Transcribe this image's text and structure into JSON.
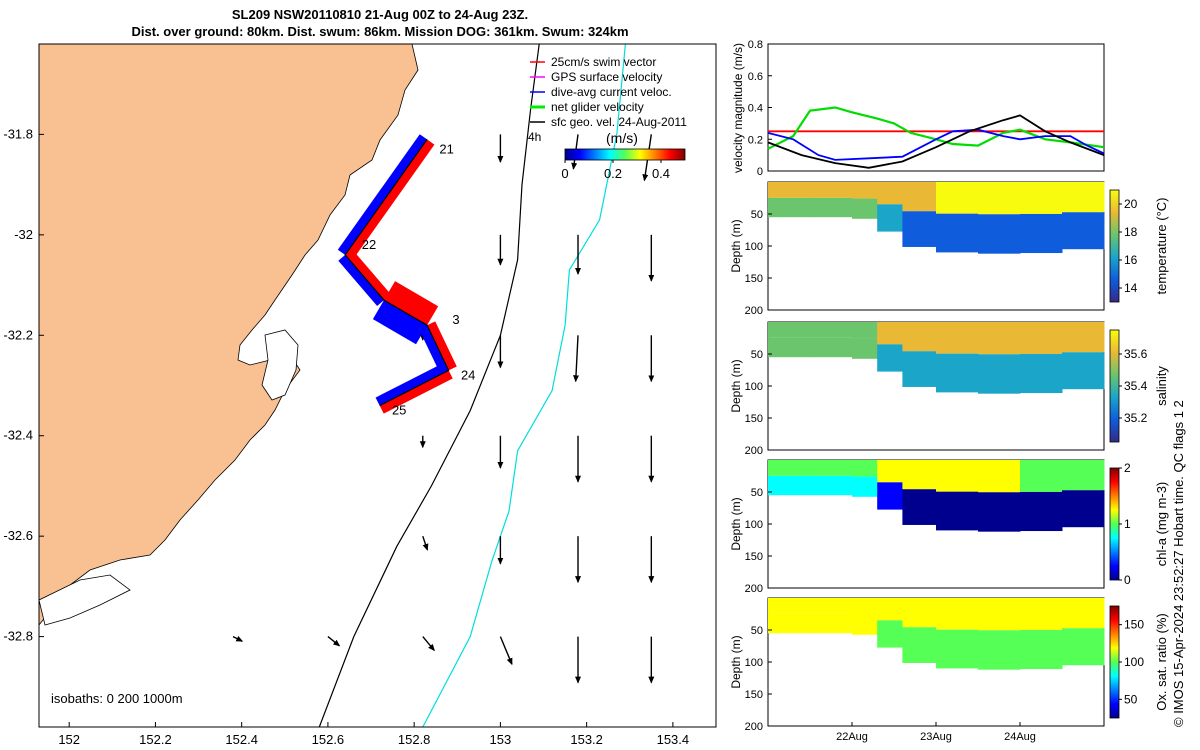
{
  "title": {
    "line1": "SL209 NSW20110810 21-Aug 00Z to 24-Aug 23Z.",
    "line2": "Dist. over ground: 80km. Dist. swum: 86km. Mission DOG: 361km. Swum: 324km"
  },
  "credit": "© IMOS 15-Apr-2024 23:52:27 Hobart time. QC flags 1  2",
  "colors": {
    "land": "#f9c091",
    "swim": "#ff0000",
    "gps": "#ff00ff",
    "current": "#0000ff",
    "net": "#00ee00",
    "geo": "#000000",
    "iso200": "#000000",
    "iso1000": "#00dddd"
  },
  "chart_data": [
    {
      "type": "line",
      "panel": "map",
      "xlim": [
        151.93,
        153.5
      ],
      "ylim": [
        -32.98,
        -31.62
      ],
      "x_ticks": [
        152,
        152.2,
        152.4,
        152.6,
        152.8,
        153,
        153.2,
        153.4
      ],
      "x_tick_labels": [
        "152",
        "152.2",
        "152.4",
        "152.6",
        "152.8",
        "153",
        "153.2",
        "153.4"
      ],
      "y_ticks": [
        -31.8,
        -32,
        -32.2,
        -32.4,
        -32.6,
        -32.8
      ],
      "y_tick_labels": [
        "-31.8",
        "-32",
        "-32.2",
        "-32.4",
        "-32.6",
        "-32.8"
      ],
      "legend": {
        "placement": "top-right",
        "items": [
          {
            "label": "25cm/s swim vector",
            "color": "#ff0000"
          },
          {
            "label": "GPS surface velocity",
            "color": "#ff00ff"
          },
          {
            "label": "dive-avg current veloc.",
            "color": "#0000ff"
          },
          {
            "label": "net glider velocity",
            "color": "#00ee00"
          },
          {
            "label": "sfc geo. vel. 24-Aug-2011",
            "color": "#000000"
          }
        ],
        "interval_label": "4h"
      },
      "colorbar": {
        "title": "(m/s)",
        "ticks": [
          "0",
          "0.2",
          "0.4"
        ],
        "range": [
          0,
          0.5
        ]
      },
      "isobath_label": "isobaths: 0   200  1000m",
      "glider_track": [
        {
          "lon": 152.83,
          "lat": -31.81
        },
        {
          "lon": 152.64,
          "lat": -32.04
        },
        {
          "lon": 152.73,
          "lat": -32.13
        },
        {
          "lon": 152.83,
          "lat": -32.18
        },
        {
          "lon": 152.88,
          "lat": -32.27
        },
        {
          "lon": 152.72,
          "lat": -32.34
        }
      ],
      "day_labels": [
        {
          "text": "21",
          "lon": 152.84,
          "lat": -31.83
        },
        {
          "text": "22",
          "lon": 152.66,
          "lat": -32.02
        },
        {
          "text": "3",
          "lon": 152.87,
          "lat": -32.17
        },
        {
          "text": "24",
          "lon": 152.89,
          "lat": -32.28
        },
        {
          "text": "25",
          "lon": 152.73,
          "lat": -32.35
        }
      ],
      "isobath_200": [
        {
          "lon": 152.58,
          "lat": -32.98
        },
        {
          "lon": 152.66,
          "lat": -32.8
        },
        {
          "lon": 152.76,
          "lat": -32.62
        },
        {
          "lon": 152.84,
          "lat": -32.5
        },
        {
          "lon": 152.93,
          "lat": -32.35
        },
        {
          "lon": 153.0,
          "lat": -32.2
        },
        {
          "lon": 153.04,
          "lat": -32.05
        },
        {
          "lon": 153.05,
          "lat": -31.9
        },
        {
          "lon": 153.07,
          "lat": -31.75
        },
        {
          "lon": 153.09,
          "lat": -31.62
        }
      ],
      "isobath_1000": [
        {
          "lon": 152.82,
          "lat": -32.98
        },
        {
          "lon": 152.93,
          "lat": -32.8
        },
        {
          "lon": 152.98,
          "lat": -32.65
        },
        {
          "lon": 153.02,
          "lat": -32.55
        },
        {
          "lon": 153.04,
          "lat": -32.43
        },
        {
          "lon": 153.12,
          "lat": -32.31
        },
        {
          "lon": 153.15,
          "lat": -32.18
        },
        {
          "lon": 153.16,
          "lat": -32.07
        },
        {
          "lon": 153.23,
          "lat": -31.97
        },
        {
          "lon": 153.27,
          "lat": -31.8
        },
        {
          "lon": 153.29,
          "lat": -31.62
        }
      ],
      "geo_vectors": [
        {
          "lon": 153.0,
          "lat": -31.8,
          "u": 0.0,
          "v": -0.12
        },
        {
          "lon": 153.18,
          "lat": -31.8,
          "u": -0.02,
          "v": -0.15
        },
        {
          "lon": 153.35,
          "lat": -31.8,
          "u": -0.03,
          "v": -0.2
        },
        {
          "lon": 153.0,
          "lat": -32.0,
          "u": 0.0,
          "v": -0.13
        },
        {
          "lon": 153.18,
          "lat": -32.0,
          "u": 0.0,
          "v": -0.17
        },
        {
          "lon": 153.35,
          "lat": -32.0,
          "u": 0.0,
          "v": -0.2
        },
        {
          "lon": 152.82,
          "lat": -32.2,
          "u": 0.0,
          "v": -0.02
        },
        {
          "lon": 153.0,
          "lat": -32.2,
          "u": 0.0,
          "v": -0.14
        },
        {
          "lon": 153.18,
          "lat": -32.2,
          "u": -0.01,
          "v": -0.2
        },
        {
          "lon": 153.35,
          "lat": -32.2,
          "u": 0.0,
          "v": -0.2
        },
        {
          "lon": 152.82,
          "lat": -32.4,
          "u": 0.0,
          "v": -0.05
        },
        {
          "lon": 153.0,
          "lat": -32.4,
          "u": 0.0,
          "v": -0.14
        },
        {
          "lon": 153.18,
          "lat": -32.4,
          "u": 0.0,
          "v": -0.2
        },
        {
          "lon": 153.35,
          "lat": -32.4,
          "u": 0.0,
          "v": -0.2
        },
        {
          "lon": 152.82,
          "lat": -32.6,
          "u": 0.02,
          "v": -0.06
        },
        {
          "lon": 153.0,
          "lat": -32.6,
          "u": 0.0,
          "v": -0.12
        },
        {
          "lon": 153.18,
          "lat": -32.6,
          "u": 0.0,
          "v": -0.2
        },
        {
          "lon": 153.35,
          "lat": -32.6,
          "u": 0.0,
          "v": -0.2
        },
        {
          "lon": 152.38,
          "lat": -32.8,
          "u": 0.04,
          "v": -0.02
        },
        {
          "lon": 152.6,
          "lat": -32.8,
          "u": 0.05,
          "v": -0.04
        },
        {
          "lon": 152.82,
          "lat": -32.8,
          "u": 0.05,
          "v": -0.06
        },
        {
          "lon": 153.0,
          "lat": -32.8,
          "u": 0.05,
          "v": -0.12
        },
        {
          "lon": 153.18,
          "lat": -32.8,
          "u": 0.0,
          "v": -0.2
        },
        {
          "lon": 153.35,
          "lat": -32.8,
          "u": 0.0,
          "v": -0.2
        }
      ]
    },
    {
      "type": "line",
      "panel": "velocity",
      "ylabel": "velocity magnitude (m/s)",
      "ylim": [
        0,
        0.8
      ],
      "y_ticks": [
        0,
        0.2,
        0.4,
        0.6,
        0.8
      ],
      "y_tick_labels": [
        "0",
        "0.2",
        "0.4",
        "0.6",
        "0.8"
      ],
      "x_range_days": [
        0,
        4
      ],
      "series": [
        {
          "color": "#ff0000",
          "x": [
            0,
            4
          ],
          "values": [
            0.25,
            0.25
          ]
        },
        {
          "color": "#00dd00",
          "x": [
            0,
            0.3,
            0.5,
            0.8,
            1.0,
            1.3,
            1.5,
            1.7,
            2.0,
            2.2,
            2.5,
            2.8,
            3.0,
            3.3,
            3.6,
            4.0
          ],
          "values": [
            0.14,
            0.22,
            0.38,
            0.4,
            0.37,
            0.33,
            0.3,
            0.24,
            0.2,
            0.17,
            0.16,
            0.24,
            0.26,
            0.2,
            0.18,
            0.15
          ]
        },
        {
          "color": "#0000ff",
          "x": [
            0,
            0.3,
            0.6,
            0.8,
            1.2,
            1.6,
            2.0,
            2.2,
            2.5,
            2.8,
            3.0,
            3.3,
            3.6,
            3.8,
            4.0
          ],
          "values": [
            0.24,
            0.2,
            0.1,
            0.07,
            0.08,
            0.09,
            0.2,
            0.25,
            0.26,
            0.22,
            0.2,
            0.22,
            0.22,
            0.16,
            0.11
          ]
        },
        {
          "color": "#000000",
          "x": [
            0,
            0.4,
            0.8,
            1.2,
            1.6,
            2.0,
            2.4,
            2.8,
            3.0,
            3.3,
            3.6,
            4.0
          ],
          "values": [
            0.18,
            0.1,
            0.05,
            0.02,
            0.06,
            0.15,
            0.25,
            0.32,
            0.35,
            0.25,
            0.18,
            0.1
          ]
        }
      ]
    },
    {
      "type": "heatmap",
      "panel": "temperature",
      "ylabel": "Depth (m)",
      "colorbar_label": "temperature (°C)",
      "ylim": [
        200,
        0
      ],
      "y_ticks": [
        50,
        100,
        150,
        200
      ],
      "y_tick_labels": [
        "50",
        "100",
        "150",
        "200"
      ],
      "cbar_range": [
        13,
        21
      ],
      "cbar_ticks": [
        "14",
        "16",
        "18",
        "20"
      ],
      "cbar_tick_values": [
        14,
        16,
        18,
        20
      ],
      "x_days": [
        0,
        0.5,
        1.0,
        1.3,
        1.6,
        2.0,
        2.5,
        3.0,
        3.5,
        4.0
      ],
      "bottom_depth_m": [
        55,
        55,
        55,
        60,
        95,
        108,
        112,
        112,
        110,
        100
      ],
      "surface": [
        19.5,
        19.2,
        19.0,
        19.5,
        20.0,
        20.3,
        20.5,
        20.5,
        20.4,
        20.3
      ],
      "deep": [
        18.0,
        18.0,
        18.0,
        17.5,
        15.5,
        14.0,
        13.8,
        14.0,
        14.5,
        15.5
      ]
    },
    {
      "type": "heatmap",
      "panel": "salinity",
      "ylabel": "Depth (m)",
      "colorbar_label": "salinity",
      "ylim": [
        200,
        0
      ],
      "y_ticks": [
        50,
        100,
        150,
        200
      ],
      "y_tick_labels": [
        "50",
        "100",
        "150",
        "200"
      ],
      "cbar_range": [
        35.05,
        35.75
      ],
      "cbar_ticks": [
        "35.2",
        "35.4",
        "35.6"
      ],
      "cbar_tick_values": [
        35.2,
        35.4,
        35.6
      ],
      "x_days": [
        0,
        0.5,
        1.0,
        1.3,
        1.6,
        2.0,
        2.5,
        3.0,
        3.5,
        4.0
      ],
      "bottom_depth_m": [
        55,
        55,
        55,
        60,
        95,
        108,
        112,
        112,
        110,
        100
      ],
      "surface": [
        35.5,
        35.5,
        35.5,
        35.55,
        35.6,
        35.65,
        35.65,
        35.65,
        35.65,
        35.6
      ],
      "deep": [
        35.45,
        35.45,
        35.45,
        35.42,
        35.35,
        35.3,
        35.3,
        35.32,
        35.35,
        35.35
      ]
    },
    {
      "type": "heatmap",
      "panel": "chlorophyll",
      "ylabel": "Depth (m)",
      "colorbar_label": "chl-a (mg m-3)",
      "ylim": [
        200,
        0
      ],
      "y_ticks": [
        50,
        100,
        150,
        200
      ],
      "y_tick_labels": [
        "50",
        "100",
        "150",
        "200"
      ],
      "cbar_range": [
        0,
        2
      ],
      "cbar_ticks": [
        "0",
        "1",
        "2"
      ],
      "cbar_tick_values": [
        0,
        1,
        2
      ],
      "x_days": [
        0,
        0.5,
        1.0,
        1.3,
        1.6,
        2.0,
        2.5,
        3.0,
        3.5,
        4.0
      ],
      "bottom_depth_m": [
        55,
        55,
        55,
        60,
        95,
        108,
        112,
        112,
        110,
        100
      ],
      "surface": [
        0.9,
        1.0,
        1.1,
        1.2,
        1.3,
        1.4,
        1.3,
        1.2,
        1.1,
        1.0
      ],
      "deep": [
        0.8,
        0.8,
        0.8,
        0.6,
        0.2,
        0.05,
        0.05,
        0.05,
        0.1,
        0.2
      ]
    },
    {
      "type": "heatmap",
      "panel": "oxygen",
      "ylabel": "Depth (m)",
      "colorbar_label": "Ox. sat. ratio (%)",
      "ylim": [
        200,
        0
      ],
      "y_ticks": [
        50,
        100,
        150,
        200
      ],
      "y_tick_labels": [
        "50",
        "100",
        "150",
        "200"
      ],
      "x_tick_labels": [
        "22Aug",
        "23Aug",
        "24Aug"
      ],
      "x_tick_days": [
        1,
        2,
        3
      ],
      "cbar_range": [
        25,
        175
      ],
      "cbar_ticks": [
        "50",
        "100",
        "150"
      ],
      "cbar_tick_values": [
        50,
        100,
        150
      ],
      "x_days": [
        0,
        0.5,
        1.0,
        1.3,
        1.6,
        2.0,
        2.5,
        3.0,
        3.5,
        4.0
      ],
      "bottom_depth_m": [
        55,
        55,
        55,
        60,
        95,
        108,
        112,
        112,
        110,
        100
      ],
      "surface": [
        125,
        125,
        125,
        122,
        120,
        118,
        118,
        118,
        120,
        122
      ],
      "deep": [
        120,
        120,
        120,
        115,
        100,
        90,
        88,
        90,
        92,
        95
      ]
    }
  ]
}
